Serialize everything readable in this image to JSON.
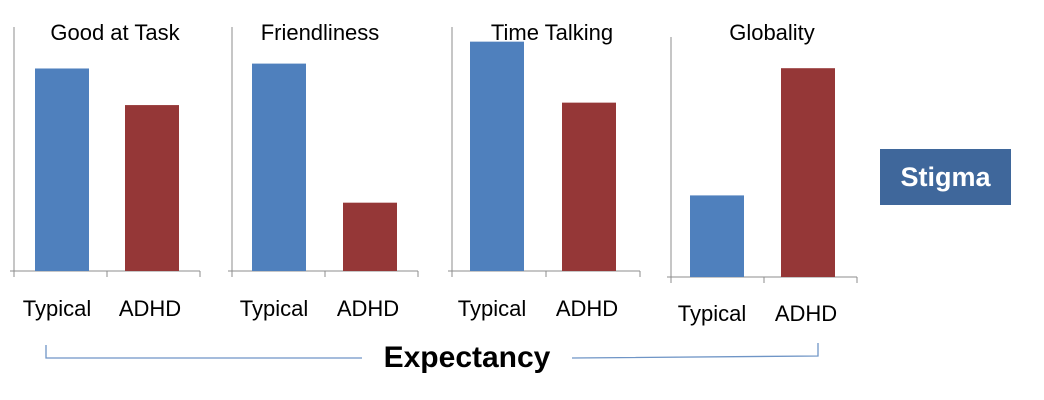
{
  "chart_data": [
    {
      "type": "bar",
      "title": "Good at Task",
      "categories": [
        "Typical",
        "ADHD"
      ],
      "values": [
        0.83,
        0.68
      ],
      "colors": [
        "#4f80bd",
        "#953737"
      ],
      "ylim": [
        0,
        1
      ],
      "grid": false
    },
    {
      "type": "bar",
      "title": "Friendliness",
      "categories": [
        "Typical",
        "ADHD"
      ],
      "values": [
        0.85,
        0.28
      ],
      "colors": [
        "#4f80bd",
        "#953737"
      ],
      "ylim": [
        0,
        1
      ],
      "grid": false
    },
    {
      "type": "bar",
      "title": "Time Talking",
      "categories": [
        "Typical",
        "ADHD"
      ],
      "values": [
        0.94,
        0.69
      ],
      "colors": [
        "#4f80bd",
        "#953737"
      ],
      "ylim": [
        0,
        1
      ],
      "grid": false
    },
    {
      "type": "bar",
      "title": "Globality",
      "categories": [
        "Typical",
        "ADHD"
      ],
      "values": [
        0.34,
        0.87
      ],
      "colors": [
        "#4f80bd",
        "#953737"
      ],
      "ylim": [
        0,
        1
      ],
      "grid": false
    }
  ],
  "labels": {
    "stigma": "Stigma",
    "expectancy": "Expectancy"
  },
  "colors": {
    "typical": "#4f80bd",
    "adhd": "#953737",
    "stigma_box": "#3f679b",
    "bracket": "#6f95c6"
  }
}
